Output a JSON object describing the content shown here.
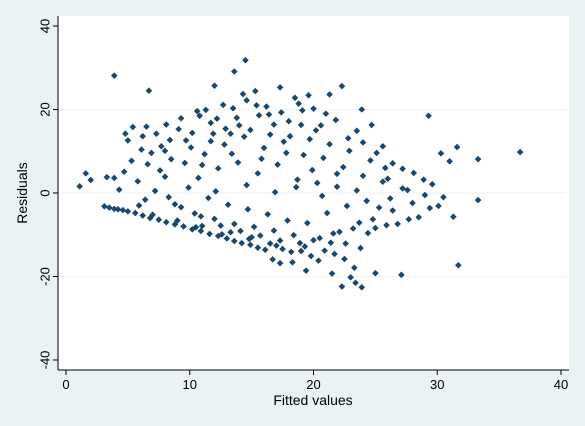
{
  "chart_data": {
    "type": "scatter",
    "title": "",
    "xlabel": "Fitted values",
    "ylabel": "Residuals",
    "xlim": [
      0,
      40
    ],
    "ylim": [
      -40,
      40
    ],
    "xticks": [
      0,
      10,
      20,
      30,
      40
    ],
    "yticks": [
      -40,
      -20,
      0,
      20,
      40
    ],
    "grid": "horizontal",
    "legend": "none",
    "marker": "diamond",
    "colors": {
      "marker": "#1a476f",
      "plot_bg": "#ffffff",
      "outer_bg": "#eaf2f3",
      "grid": "#eaf2f3"
    },
    "points": [
      [
        3.9,
        28.1
      ],
      [
        6.7,
        24.5
      ],
      [
        14.5,
        31.8
      ],
      [
        12.0,
        25.7
      ],
      [
        13.6,
        29.1
      ],
      [
        17.3,
        25.3
      ],
      [
        22.3,
        25.6
      ],
      [
        21.3,
        23.6
      ],
      [
        19.6,
        23.4
      ],
      [
        18.5,
        22.8
      ],
      [
        23.9,
        20.0
      ],
      [
        20.0,
        20.2
      ],
      [
        29.3,
        18.5
      ],
      [
        36.7,
        9.8
      ],
      [
        33.3,
        8.1
      ],
      [
        31.6,
        11.0
      ],
      [
        31.0,
        7.6
      ],
      [
        30.3,
        9.5
      ],
      [
        33.3,
        -1.7
      ],
      [
        31.3,
        -5.7
      ],
      [
        31.7,
        -17.3
      ],
      [
        27.1,
        -19.6
      ],
      [
        25.0,
        -19.2
      ],
      [
        23.9,
        -22.6
      ],
      [
        22.3,
        -22.4
      ],
      [
        23.4,
        -21.5
      ],
      [
        23.0,
        -20.2
      ],
      [
        21.5,
        -19.3
      ],
      [
        19.4,
        -18.6
      ],
      [
        18.3,
        -16.6
      ],
      [
        17.3,
        -16.8
      ],
      [
        16.7,
        -15.9
      ],
      [
        1.1,
        1.6
      ],
      [
        1.6,
        4.7
      ],
      [
        2.0,
        3.1
      ],
      [
        3.3,
        3.8
      ],
      [
        3.9,
        3.6
      ],
      [
        4.3,
        0.8
      ],
      [
        4.8,
        14.2
      ],
      [
        5.0,
        12.6
      ],
      [
        5.4,
        15.8
      ],
      [
        6.2,
        13.6
      ],
      [
        6.5,
        15.9
      ],
      [
        7.3,
        14.2
      ],
      [
        8.1,
        16.4
      ],
      [
        9.3,
        17.9
      ],
      [
        10.6,
        19.6
      ],
      [
        11.3,
        19.9
      ],
      [
        12.7,
        21.1
      ],
      [
        10.8,
        18.5
      ],
      [
        14.6,
        22.2
      ],
      [
        15.4,
        21.0
      ],
      [
        16.2,
        20.7
      ],
      [
        17.4,
        19.3
      ],
      [
        12.2,
        17.8
      ],
      [
        13.5,
        20.3
      ],
      [
        14.3,
        23.7
      ],
      [
        3.1,
        -3.2
      ],
      [
        3.5,
        -3.5
      ],
      [
        3.9,
        -3.8
      ],
      [
        4.2,
        -3.9
      ],
      [
        4.6,
        -4.1
      ],
      [
        5.0,
        -4.4
      ],
      [
        5.6,
        -4.8
      ],
      [
        6.2,
        -5.4
      ],
      [
        6.8,
        -6.0
      ],
      [
        7.5,
        -6.4
      ],
      [
        8.1,
        -7.0
      ],
      [
        8.8,
        -7.5
      ],
      [
        9.5,
        -8.0
      ],
      [
        10.2,
        -8.7
      ],
      [
        10.9,
        -9.1
      ],
      [
        11.6,
        -9.8
      ],
      [
        12.3,
        -10.3
      ],
      [
        13.0,
        -10.9
      ],
      [
        13.6,
        -11.5
      ],
      [
        14.2,
        -12.0
      ],
      [
        14.9,
        -12.4
      ],
      [
        15.5,
        -13.1
      ],
      [
        16.1,
        -13.6
      ],
      [
        7.0,
        -5.2
      ],
      [
        9.0,
        -6.6
      ],
      [
        11.0,
        -7.9
      ],
      [
        13.3,
        -9.4
      ],
      [
        15.0,
        -10.6
      ],
      [
        16.5,
        -12.1
      ],
      [
        17.5,
        -13.4
      ],
      [
        18.2,
        -14.1
      ],
      [
        19.0,
        -13.9
      ],
      [
        19.8,
        -15.1
      ],
      [
        20.4,
        -16.2
      ],
      [
        20.9,
        -13.8
      ],
      [
        21.7,
        -14.6
      ],
      [
        22.5,
        -15.8
      ],
      [
        23.3,
        -17.9
      ],
      [
        22.6,
        -12.1
      ],
      [
        23.8,
        -13.2
      ],
      [
        24.4,
        -9.6
      ],
      [
        25.0,
        -8.4
      ],
      [
        25.9,
        -7.7
      ],
      [
        26.8,
        -7.4
      ],
      [
        27.7,
        -6.3
      ],
      [
        28.5,
        -5.8
      ],
      [
        29.4,
        -3.6
      ],
      [
        30.1,
        -3.1
      ],
      [
        26.4,
        7.1
      ],
      [
        27.2,
        5.8
      ],
      [
        28.1,
        4.8
      ],
      [
        28.9,
        3.2
      ],
      [
        29.6,
        2.1
      ],
      [
        30.5,
        -1.0
      ],
      [
        29.0,
        -0.5
      ],
      [
        27.6,
        0.7
      ],
      [
        26.0,
        3.4
      ],
      [
        25.1,
        9.6
      ],
      [
        24.0,
        12.1
      ],
      [
        23.5,
        14.9
      ],
      [
        24.7,
        16.3
      ],
      [
        25.6,
        11.2
      ],
      [
        21.8,
        17.5
      ],
      [
        20.6,
        16.2
      ],
      [
        19.1,
        19.8
      ],
      [
        18.0,
        17.2
      ],
      [
        16.8,
        16.4
      ],
      [
        15.6,
        18.6
      ],
      [
        14.0,
        16.2
      ],
      [
        12.9,
        15.4
      ],
      [
        11.7,
        16.8
      ],
      [
        10.2,
        14.4
      ],
      [
        9.1,
        15.3
      ],
      [
        8.4,
        12.7
      ],
      [
        7.7,
        11.2
      ],
      [
        6.9,
        9.6
      ],
      [
        6.1,
        10.4
      ],
      [
        5.3,
        7.7
      ],
      [
        4.7,
        5.1
      ],
      [
        5.8,
        2.8
      ],
      [
        6.4,
        -1.6
      ],
      [
        7.2,
        0.5
      ],
      [
        8.0,
        3.9
      ],
      [
        8.8,
        -2.7
      ],
      [
        9.6,
        7.2
      ],
      [
        10.4,
        -4.9
      ],
      [
        11.2,
        9.3
      ],
      [
        12.0,
        -6.2
      ],
      [
        12.8,
        11.6
      ],
      [
        13.6,
        -7.4
      ],
      [
        14.4,
        13.5
      ],
      [
        15.2,
        -8.1
      ],
      [
        16.0,
        10.8
      ],
      [
        16.8,
        -9.0
      ],
      [
        17.6,
        12.3
      ],
      [
        18.4,
        -10.1
      ],
      [
        19.2,
        9.1
      ],
      [
        20.0,
        -11.3
      ],
      [
        20.8,
        8.4
      ],
      [
        21.6,
        -9.7
      ],
      [
        22.4,
        6.2
      ],
      [
        23.2,
        -8.5
      ],
      [
        24.0,
        4.1
      ],
      [
        24.8,
        -6.3
      ],
      [
        25.6,
        2.7
      ],
      [
        26.4,
        -4.2
      ],
      [
        27.2,
        1.1
      ],
      [
        28.0,
        -2.4
      ],
      [
        9.9,
        1.3
      ],
      [
        10.7,
        3.6
      ],
      [
        11.5,
        -1.2
      ],
      [
        12.3,
        5.9
      ],
      [
        13.1,
        -2.8
      ],
      [
        13.9,
        7.3
      ],
      [
        14.7,
        -3.9
      ],
      [
        15.5,
        4.7
      ],
      [
        16.3,
        -5.1
      ],
      [
        17.1,
        6.8
      ],
      [
        17.9,
        -6.6
      ],
      [
        18.7,
        3.2
      ],
      [
        19.5,
        -7.2
      ],
      [
        20.3,
        2.4
      ],
      [
        21.1,
        -4.8
      ],
      [
        21.9,
        1.5
      ],
      [
        22.7,
        -3.1
      ],
      [
        23.5,
        0.6
      ],
      [
        8.5,
        8.1
      ],
      [
        9.3,
        -3.4
      ],
      [
        10.1,
        10.9
      ],
      [
        10.9,
        -5.6
      ],
      [
        11.7,
        12.4
      ],
      [
        12.5,
        -7.8
      ],
      [
        13.3,
        14.2
      ],
      [
        14.1,
        -9.1
      ],
      [
        14.9,
        15.1
      ],
      [
        15.7,
        -10.2
      ],
      [
        16.5,
        14.0
      ],
      [
        17.3,
        -11.4
      ],
      [
        18.1,
        13.6
      ],
      [
        18.9,
        -12.0
      ],
      [
        19.7,
        12.9
      ],
      [
        20.5,
        -10.8
      ],
      [
        21.3,
        11.7
      ],
      [
        22.1,
        -9.3
      ],
      [
        22.9,
        10.1
      ],
      [
        23.7,
        -7.1
      ],
      [
        12.1,
        0.4
      ],
      [
        14.6,
        1.9
      ],
      [
        16.9,
        0.2
      ],
      [
        18.6,
        1.4
      ],
      [
        20.7,
        -0.7
      ],
      [
        11.0,
        6.7
      ],
      [
        13.4,
        9.4
      ],
      [
        15.8,
        8.2
      ],
      [
        17.8,
        9.6
      ],
      [
        19.9,
        5.5
      ],
      [
        21.9,
        4.6
      ],
      [
        10.5,
        -8.2
      ],
      [
        12.6,
        -9.9
      ],
      [
        14.8,
        -11.0
      ],
      [
        17.0,
        -12.6
      ],
      [
        19.3,
        -12.8
      ],
      [
        21.4,
        -11.9
      ],
      [
        7.6,
        5.4
      ],
      [
        8.3,
        -1.0
      ],
      [
        6.6,
        6.9
      ],
      [
        5.9,
        -3.0
      ],
      [
        24.3,
        -1.9
      ],
      [
        25.3,
        -3.5
      ],
      [
        26.2,
        -1.3
      ],
      [
        24.6,
        7.8
      ],
      [
        25.8,
        6.0
      ],
      [
        22.8,
        13.1
      ],
      [
        20.2,
        15.0
      ],
      [
        19.0,
        16.3
      ],
      [
        16.4,
        18.8
      ],
      [
        13.8,
        18.0
      ],
      [
        11.9,
        14.2
      ],
      [
        9.7,
        12.6
      ],
      [
        8.0,
        10.1
      ],
      [
        15.3,
        24.4
      ],
      [
        18.8,
        21.4
      ],
      [
        21.0,
        19.0
      ]
    ]
  }
}
